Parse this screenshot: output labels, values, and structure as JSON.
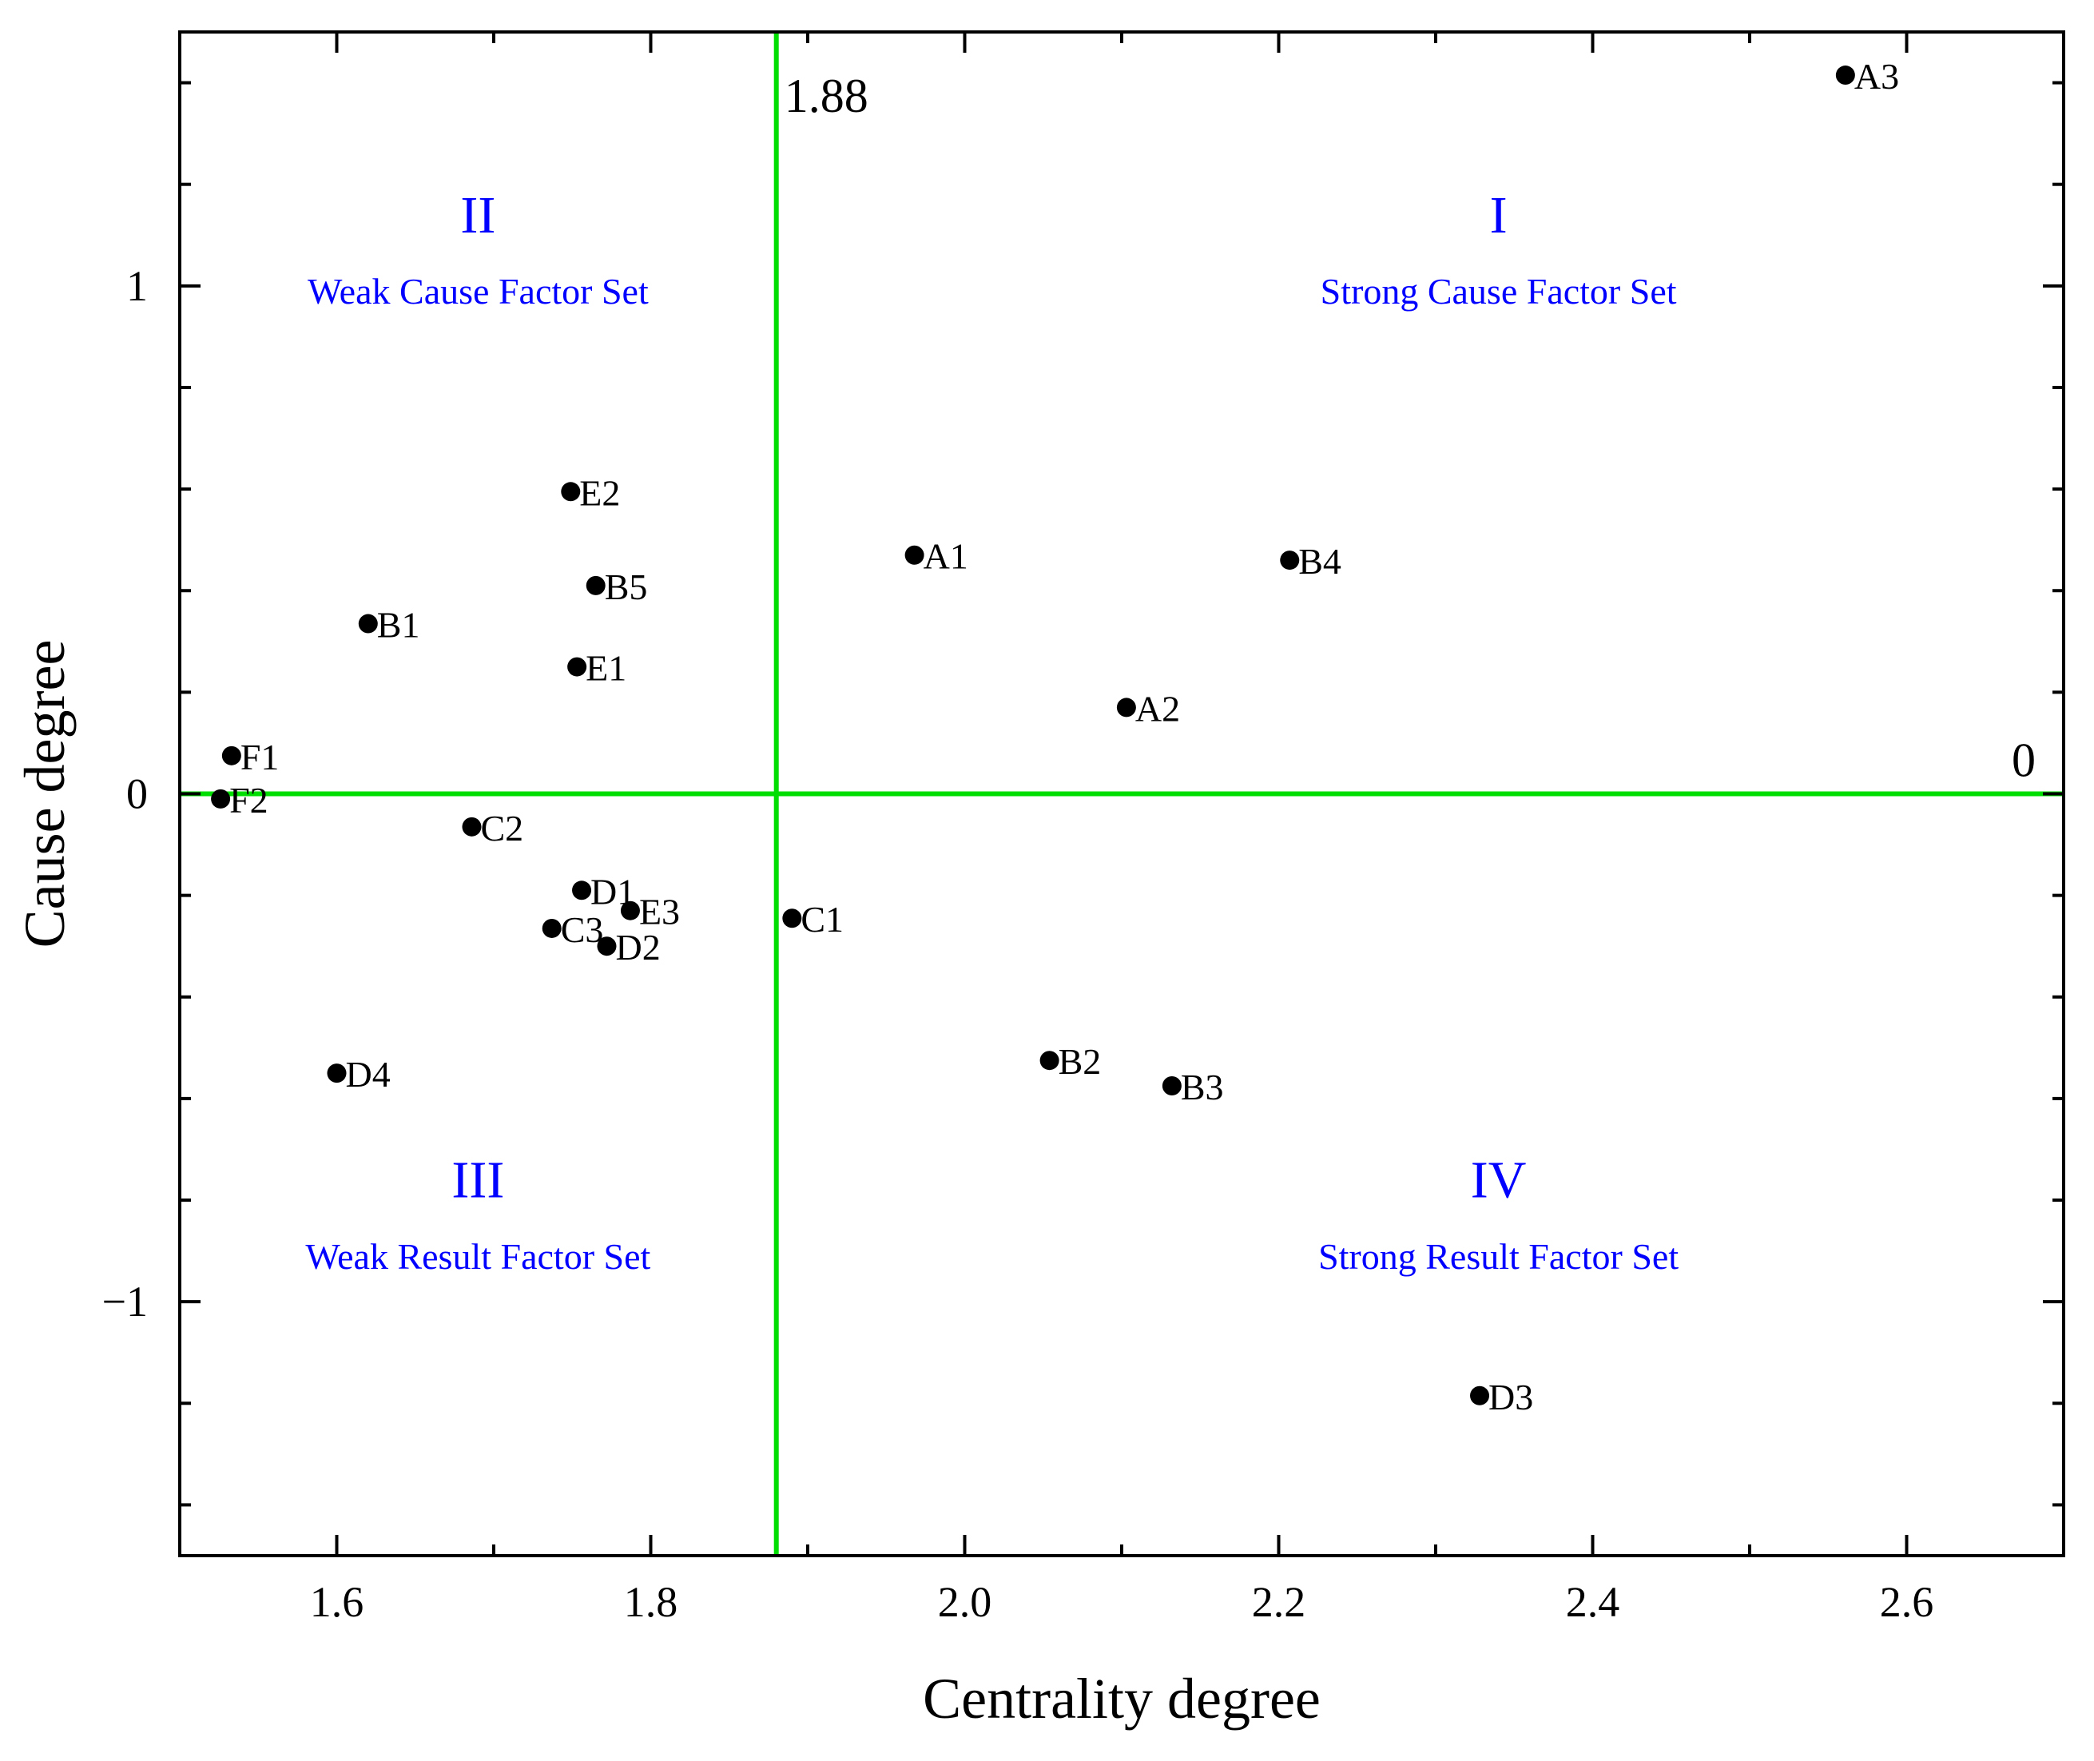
{
  "chart_data": {
    "type": "scatter",
    "title": "",
    "xlabel": "Centrality degree",
    "ylabel": "Cause degree",
    "xlim": [
      1.5,
      2.7
    ],
    "ylim": [
      -1.5,
      1.5
    ],
    "xticks": [
      1.6,
      1.8,
      2.0,
      2.2,
      2.4,
      2.6
    ],
    "xtick_labels": [
      "1.6",
      "1.8",
      "2.0",
      "2.2",
      "2.4",
      "2.6"
    ],
    "yticks": [
      -1,
      0,
      1
    ],
    "ytick_labels": [
      "−1",
      "0",
      "1"
    ],
    "grid": false,
    "point_color": "#000000",
    "reference_color": "#00dd00",
    "quadrant_label_color": "#0000ff",
    "reference_lines": {
      "vertical": {
        "x": 1.88,
        "label": "1.88"
      },
      "horizontal": {
        "y": 0,
        "label": "0"
      }
    },
    "quadrants": [
      {
        "numeral": "I",
        "name": "Strong Cause Factor Set",
        "x": 2.34,
        "y_num": 1.14,
        "y_name": 0.99
      },
      {
        "numeral": "II",
        "name": "Weak Cause Factor Set",
        "x": 1.69,
        "y_num": 1.14,
        "y_name": 0.99
      },
      {
        "numeral": "III",
        "name": "Weak Result Factor Set",
        "x": 1.69,
        "y_num": -0.76,
        "y_name": -0.91
      },
      {
        "numeral": "IV",
        "name": "Strong Result Factor Set",
        "x": 2.34,
        "y_num": -0.76,
        "y_name": -0.91
      }
    ],
    "points": [
      {
        "label": "A1",
        "x": 1.968,
        "y": 0.47
      },
      {
        "label": "A2",
        "x": 2.103,
        "y": 0.17
      },
      {
        "label": "A3",
        "x": 2.561,
        "y": 1.415
      },
      {
        "label": "B1",
        "x": 1.62,
        "y": 0.335
      },
      {
        "label": "B2",
        "x": 2.054,
        "y": -0.525
      },
      {
        "label": "B3",
        "x": 2.132,
        "y": -0.575
      },
      {
        "label": "B4",
        "x": 2.207,
        "y": 0.46
      },
      {
        "label": "B5",
        "x": 1.765,
        "y": 0.41
      },
      {
        "label": "C1",
        "x": 1.89,
        "y": -0.245
      },
      {
        "label": "C2",
        "x": 1.686,
        "y": -0.065
      },
      {
        "label": "C3",
        "x": 1.737,
        "y": -0.265
      },
      {
        "label": "D1",
        "x": 1.756,
        "y": -0.19
      },
      {
        "label": "D2",
        "x": 1.772,
        "y": -0.3
      },
      {
        "label": "D3",
        "x": 2.328,
        "y": -1.185
      },
      {
        "label": "D4",
        "x": 1.6,
        "y": -0.55
      },
      {
        "label": "E1",
        "x": 1.753,
        "y": 0.25
      },
      {
        "label": "E2",
        "x": 1.749,
        "y": 0.595
      },
      {
        "label": "E3",
        "x": 1.787,
        "y": -0.23
      },
      {
        "label": "F1",
        "x": 1.533,
        "y": 0.075
      },
      {
        "label": "F2",
        "x": 1.526,
        "y": -0.01
      }
    ]
  }
}
